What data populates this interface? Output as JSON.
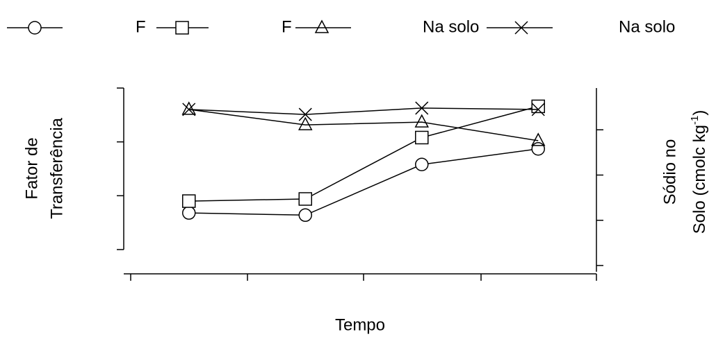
{
  "chart_data": {
    "type": "line",
    "x_label": "Tempo",
    "y_label": [
      "Fator de",
      "Transferência"
    ],
    "y2_label": {
      "line1": "Sódio no",
      "line2": "Solo (cmolc kg",
      "superscript": "-1",
      "line2_end": ")"
    },
    "categories": [
      null,
      null,
      null,
      null
    ],
    "ylim": [
      0,
      3
    ],
    "yticks": [
      0,
      1,
      2,
      3
    ],
    "y2lim": [
      0,
      4
    ],
    "y2ticks": [
      0,
      1,
      2,
      3
    ],
    "legend_extra_text": "Na  solo",
    "series": [
      {
        "marker": "circle",
        "color": "#000000",
        "values": [
          0.68,
          0.64,
          1.58,
          1.87
        ]
      },
      {
        "name": "F",
        "marker": "square",
        "color": "#000000",
        "values": [
          0.9,
          0.94,
          2.08,
          2.66
        ]
      },
      {
        "name": "F",
        "marker": "triangle",
        "color": "#000000",
        "axis": "y2",
        "values": [
          3.45,
          3.11,
          3.17,
          2.76
        ]
      },
      {
        "name": "Na  solo",
        "marker": "cross",
        "color": "#000000",
        "axis": "y2",
        "values": [
          3.45,
          3.34,
          3.48,
          3.45
        ]
      }
    ]
  }
}
